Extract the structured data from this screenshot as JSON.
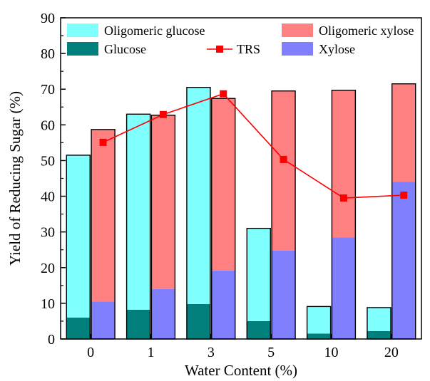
{
  "chart_data": {
    "type": "bar",
    "xlabel": "Water Content (%)",
    "ylabel": "Yield of Reducing Sugar (%)",
    "ylim": [
      0,
      90
    ],
    "yticks": [
      0,
      10,
      20,
      30,
      40,
      50,
      60,
      70,
      80,
      90
    ],
    "categories": [
      "0",
      "1",
      "3",
      "5",
      "10",
      "20"
    ],
    "stacks": [
      {
        "name": "glucose-stack",
        "series": [
          {
            "key": "glucose",
            "name": "Glucose",
            "color": "#007f7b",
            "values": [
              6,
              8.2,
              9.8,
              5,
              1.5,
              2.2
            ]
          },
          {
            "key": "oligo_glucose",
            "name": "Oligomeric glucose",
            "color": "#80ffff",
            "values": [
              45.5,
              54.8,
              60.7,
              26,
              7.6,
              6.6
            ]
          }
        ]
      },
      {
        "name": "xylose-stack",
        "series": [
          {
            "key": "xylose",
            "name": "Xylose",
            "color": "#8080ff",
            "values": [
              10.5,
              14,
              19.2,
              24.8,
              28.5,
              44
            ]
          },
          {
            "key": "oligo_xylose",
            "name": "Oligomeric xylose",
            "color": "#ff8080",
            "values": [
              48.2,
              48.7,
              48.2,
              44.7,
              41.2,
              27.5
            ]
          }
        ]
      }
    ],
    "line": {
      "name": "TRS",
      "color": "#ff0000",
      "values": [
        55.1,
        62.9,
        68.7,
        50.3,
        39.5,
        40.3
      ]
    },
    "legend": {
      "placement": "top",
      "items": [
        {
          "key": "oligo_glucose",
          "label": "Oligomeric glucose",
          "kind": "box",
          "color": "#80ffff"
        },
        {
          "key": "oligo_xylose",
          "label": "Oligomeric xylose",
          "kind": "box",
          "color": "#ff8080"
        },
        {
          "key": "glucose",
          "label": "Glucose",
          "kind": "box",
          "color": "#007f7b"
        },
        {
          "key": "trs",
          "label": "TRS",
          "kind": "line",
          "color": "#ff0000"
        },
        {
          "key": "xylose",
          "label": "Xylose",
          "kind": "box",
          "color": "#8080ff"
        }
      ]
    }
  }
}
